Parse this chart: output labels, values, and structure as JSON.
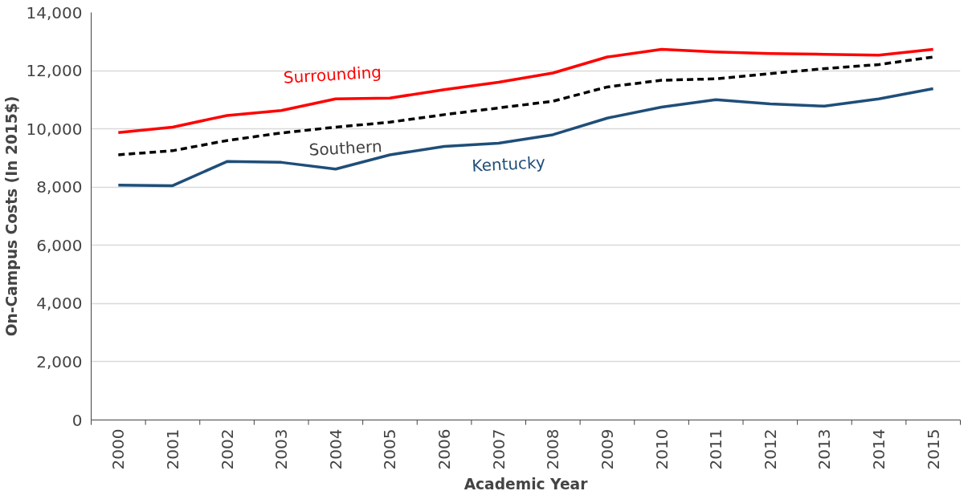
{
  "chart_data": {
    "type": "line",
    "xlabel": "Academic Year",
    "ylabel": "On-Campus Costs (In 2015$)",
    "categories": [
      "2000",
      "2001",
      "2002",
      "2003",
      "2004",
      "2005",
      "2006",
      "2007",
      "2008",
      "2009",
      "2010",
      "2011",
      "2012",
      "2013",
      "2014",
      "2015"
    ],
    "series": [
      {
        "name": "Surrounding",
        "color": "#ff0000",
        "line_style": "solid",
        "values": [
          9870,
          10060,
          10460,
          10630,
          11030,
          11060,
          11350,
          11600,
          11920,
          12470,
          12730,
          12640,
          12590,
          12560,
          12530,
          12730
        ]
      },
      {
        "name": "Southern",
        "color": "#000000",
        "line_style": "dashed",
        "values": [
          9110,
          9250,
          9600,
          9860,
          10060,
          10230,
          10490,
          10720,
          10950,
          11440,
          11670,
          11720,
          11900,
          12070,
          12210,
          12470
        ]
      },
      {
        "name": "Kentucky",
        "color": "#1f4e79",
        "line_style": "solid",
        "values": [
          8070,
          8050,
          8880,
          8850,
          8620,
          9110,
          9400,
          9510,
          9800,
          10370,
          10750,
          11000,
          10860,
          10780,
          11030,
          11380
        ]
      }
    ],
    "ylim": [
      0,
      14000
    ],
    "yticks": [
      {
        "value": 0,
        "label": "0"
      },
      {
        "value": 2000,
        "label": "2,000"
      },
      {
        "value": 4000,
        "label": "4,000"
      },
      {
        "value": 6000,
        "label": "6,000"
      },
      {
        "value": 8000,
        "label": "8,000"
      },
      {
        "value": 10000,
        "label": "10,000"
      },
      {
        "value": 12000,
        "label": "12,000"
      },
      {
        "value": 14000,
        "label": "14,000"
      }
    ],
    "grid": "y",
    "legend": false,
    "marker": "none"
  }
}
